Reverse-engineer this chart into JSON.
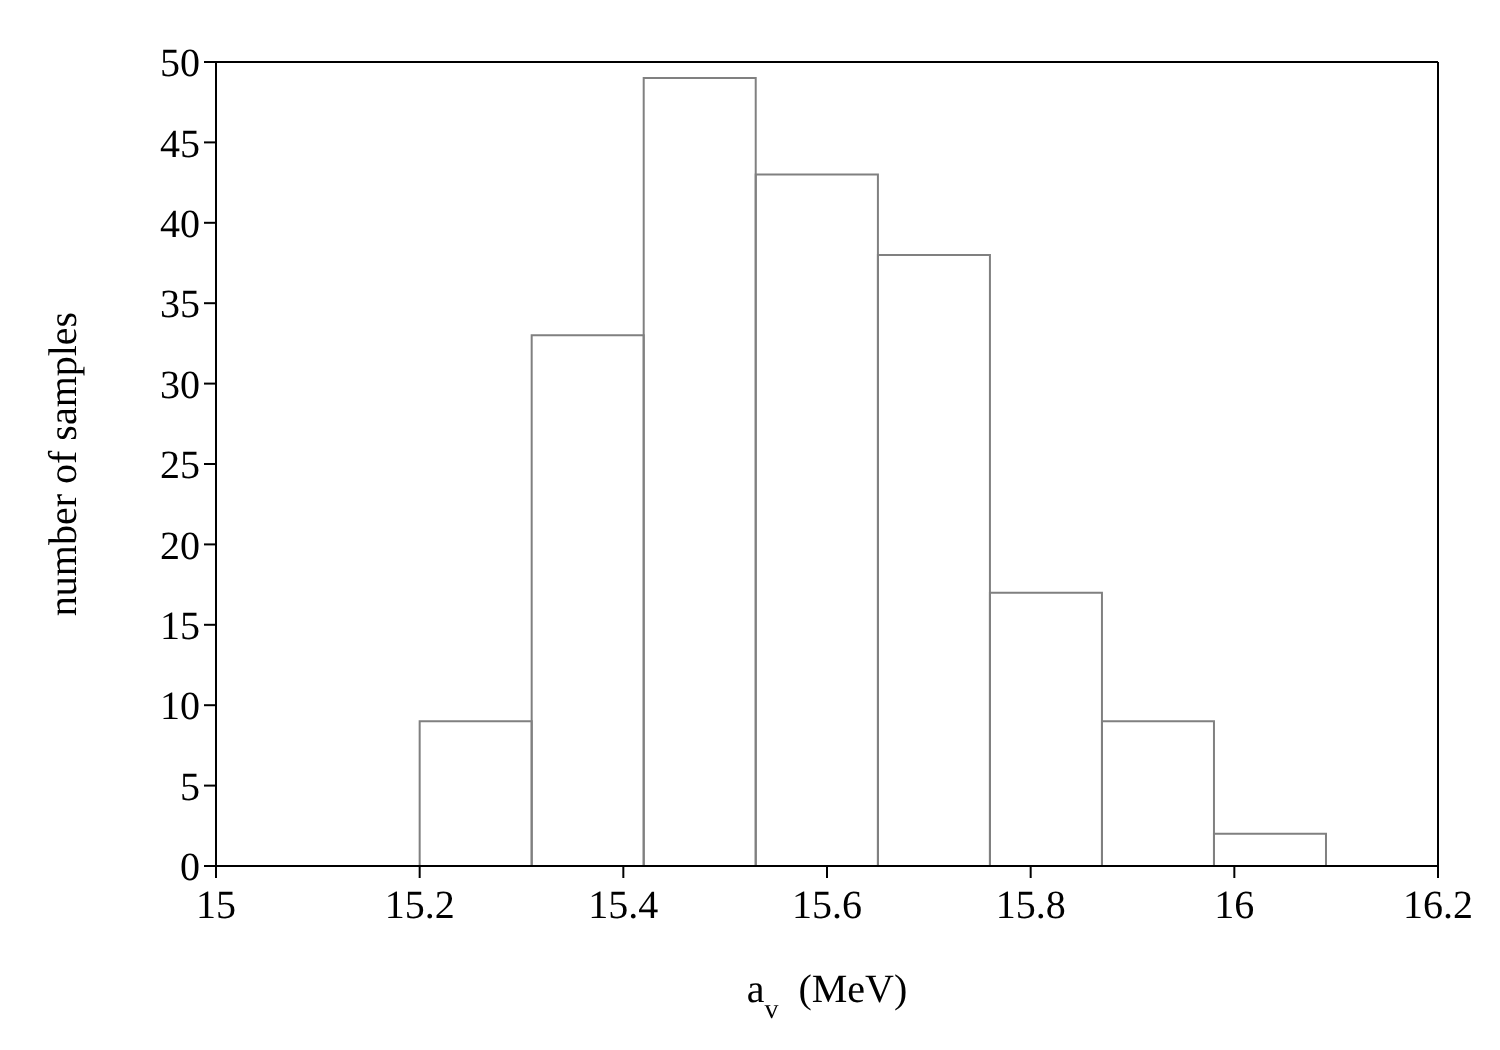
{
  "chart_data": {
    "type": "histogram",
    "xlabel": "a$_{v}$  (MeV)",
    "ylabel": "number of samples",
    "bins": [
      15.2,
      15.31,
      15.42,
      15.53,
      15.65,
      15.76,
      15.87,
      15.98,
      16.09
    ],
    "values": [
      9,
      33,
      49,
      43,
      38,
      17,
      9,
      2
    ],
    "color": "#808080",
    "xlim": [
      15,
      16.2
    ],
    "xticks": [
      15,
      15.2,
      15.4,
      15.6,
      15.8,
      16,
      16.2
    ],
    "ylim": [
      0,
      50
    ],
    "yticks": [
      0,
      5,
      10,
      15,
      20,
      25,
      30,
      35,
      40,
      45,
      50
    ],
    "grid": false
  }
}
